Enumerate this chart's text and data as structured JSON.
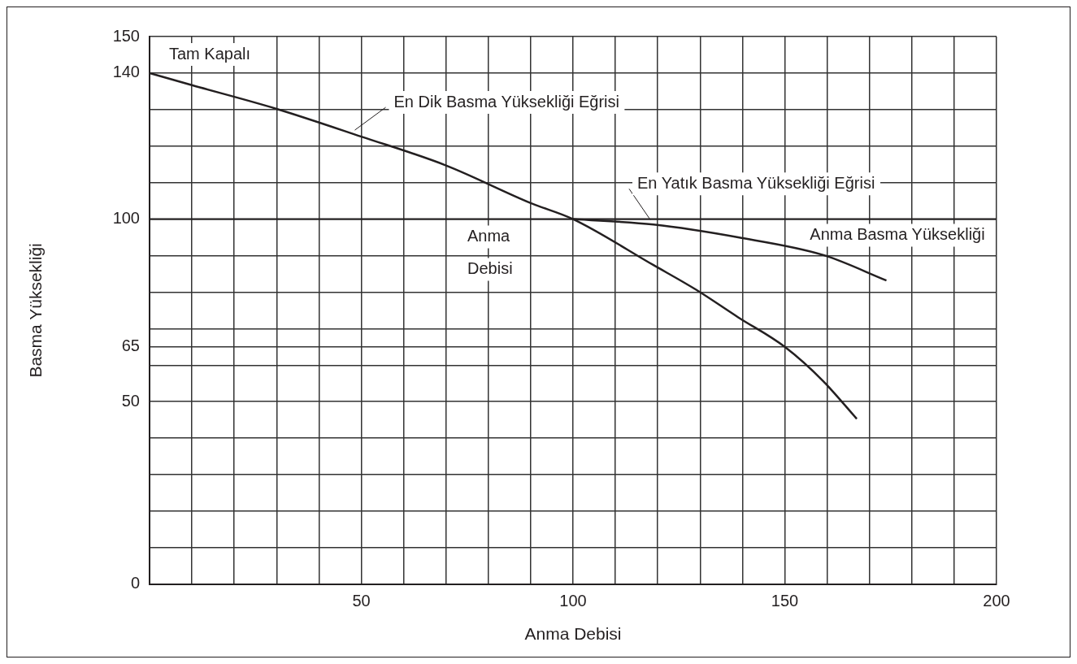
{
  "chart_data": {
    "type": "line",
    "xlabel": "Anma Debisi",
    "ylabel": "Basma Yüksekliği",
    "xlim": [
      0,
      200
    ],
    "ylim": [
      0,
      150
    ],
    "xticks": [
      {
        "value": 10,
        "label": null
      },
      {
        "value": 20,
        "label": null
      },
      {
        "value": 30,
        "label": null
      },
      {
        "value": 40,
        "label": null
      },
      50,
      {
        "value": 60,
        "label": null
      },
      {
        "value": 70,
        "label": null
      },
      {
        "value": 80,
        "label": null
      },
      {
        "value": 90,
        "label": null
      },
      100,
      {
        "value": 110,
        "label": null
      },
      {
        "value": 120,
        "label": null
      },
      {
        "value": 130,
        "label": null
      },
      {
        "value": 140,
        "label": null
      },
      150,
      {
        "value": 160,
        "label": null
      },
      {
        "value": 170,
        "label": null
      },
      {
        "value": 180,
        "label": null
      },
      {
        "value": 190,
        "label": null
      },
      200
    ],
    "yticks": [
      0,
      {
        "value": 10,
        "label": null
      },
      {
        "value": 20,
        "label": null
      },
      {
        "value": 30,
        "label": null
      },
      {
        "value": 40,
        "label": null
      },
      50,
      {
        "value": 60,
        "label": null
      },
      65,
      {
        "value": 70,
        "label": null
      },
      {
        "value": 80,
        "label": null
      },
      {
        "value": 90,
        "label": null
      },
      100,
      {
        "value": 110,
        "label": null
      },
      {
        "value": 120,
        "label": null
      },
      {
        "value": 130,
        "label": null
      },
      140,
      150
    ],
    "grid": true,
    "legend": false,
    "marker": "none",
    "line_style": "solid",
    "series": [
      {
        "name": "En Dik Basma Yüksekliği Eğrisi",
        "color": "#231f20",
        "x": [
          0,
          10,
          30,
          50,
          70,
          90,
          100,
          119,
          129,
          139,
          150,
          159,
          167
        ],
        "values": [
          140,
          136.7,
          130.2,
          122.6,
          114.7,
          104.4,
          100,
          87.4,
          80.7,
          73.1,
          65,
          55.7,
          45.3
        ]
      },
      {
        "name": "En Yatık Basma Yüksekliği Eğrisi",
        "color": "#231f20",
        "x": [
          100,
          119,
          139,
          159,
          174
        ],
        "values": [
          100,
          98.5,
          95,
          90.2,
          83.2
        ]
      }
    ],
    "ref_lines": [
      {
        "axis": "y",
        "value": 100,
        "label": "Anma Basma Yüksekliği",
        "color": "#231f20"
      }
    ],
    "annotations": [
      "Tam Kapalı",
      "Anma Debisi"
    ]
  }
}
